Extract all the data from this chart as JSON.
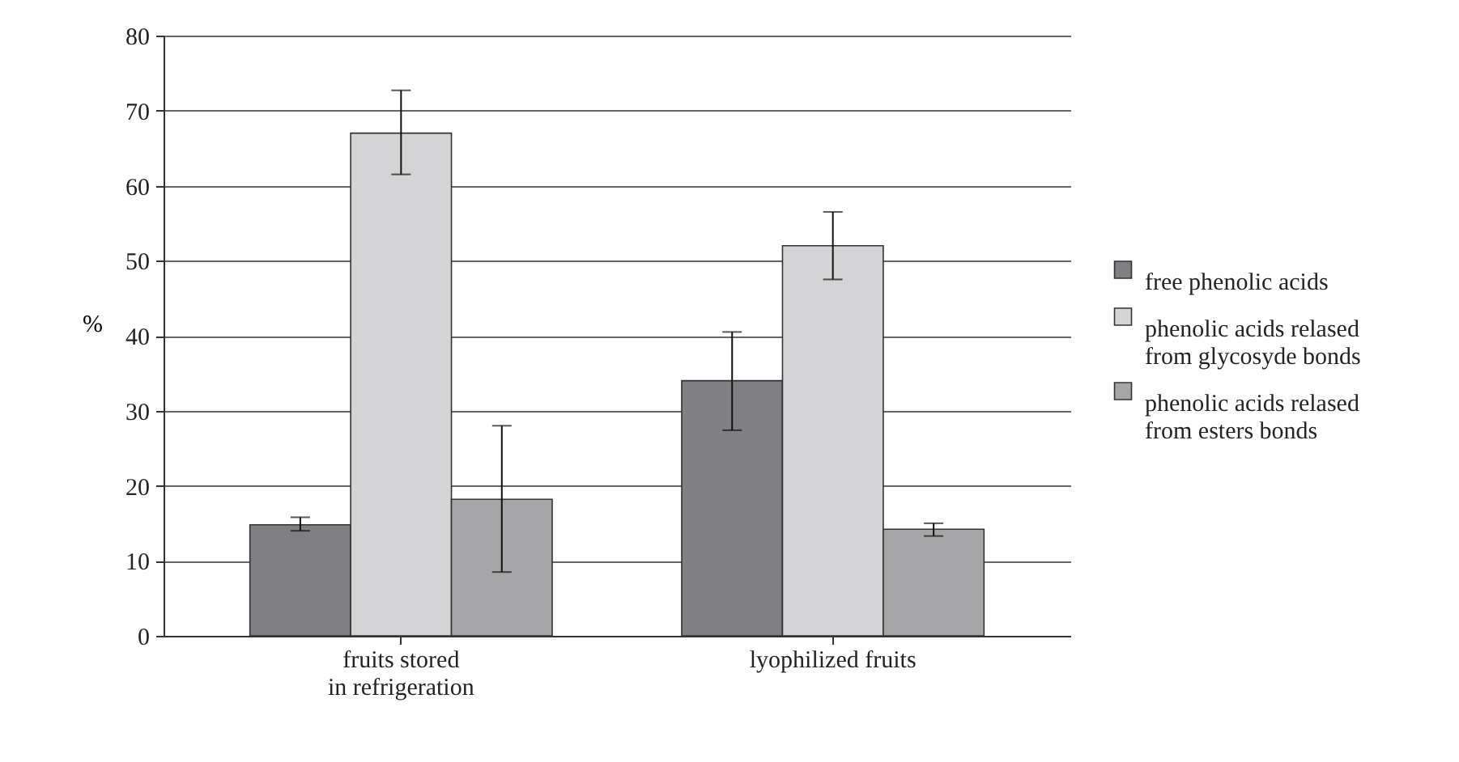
{
  "chart_data": {
    "type": "bar",
    "ylabel": "%",
    "categories": [
      "fruits stored in refrigeration",
      "lyophilized fruits"
    ],
    "series": [
      {
        "name": "free  phenolic acids",
        "color": "#7f7f84",
        "values": [
          14.8,
          34
        ],
        "errors": [
          [
            14,
            15.8
          ],
          [
            27.4,
            40.5
          ]
        ]
      },
      {
        "name": "phenolic acids relased from glycosyde bonds",
        "color": "#d4d4d6",
        "values": [
          67,
          52
        ],
        "errors": [
          [
            61.5,
            72.7
          ],
          [
            47.5,
            56.5
          ]
        ]
      },
      {
        "name": "phenolic acids relased from esters bonds",
        "color": "#a6a6a9",
        "values": [
          18.2,
          14.2
        ],
        "errors": [
          [
            8.5,
            28
          ],
          [
            13.3,
            15
          ]
        ]
      }
    ],
    "ylim": [
      0,
      80
    ],
    "yticks": [
      0,
      10,
      20,
      30,
      40,
      50,
      60,
      70,
      80
    ],
    "grid": "y",
    "legend": "right"
  }
}
